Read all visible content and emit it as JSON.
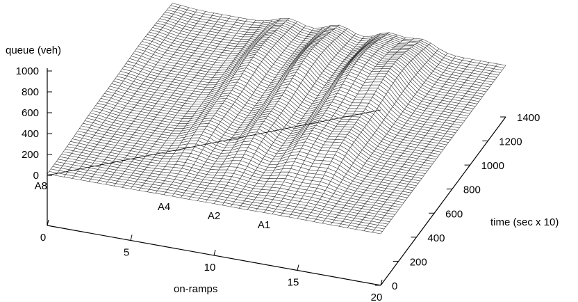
{
  "chart_data": {
    "type": "surface",
    "title": "",
    "xlabel": "on-ramps",
    "ylabel": "time (sec x 10)",
    "zlabel": "queue (veh)",
    "xlim": [
      0,
      20
    ],
    "ylim": [
      0,
      1400
    ],
    "zlim": [
      0,
      1000
    ],
    "x_ticks": [
      "0",
      "5",
      "10",
      "15",
      "20"
    ],
    "y_ticks": [
      "0",
      "200",
      "400",
      "600",
      "800",
      "1000",
      "1200",
      "1400"
    ],
    "z_ticks": [
      "0",
      "200",
      "400",
      "600",
      "800",
      "1000"
    ],
    "ramp_labels": [
      {
        "label": "A8",
        "x": 0
      },
      {
        "label": "A4",
        "x": 7
      },
      {
        "label": "A2",
        "x": 10
      },
      {
        "label": "A1",
        "x": 13
      }
    ],
    "grid": false,
    "surface_profiles": [
      {
        "x": 0,
        "peak_queue": 200
      },
      {
        "x": 7,
        "peak_queue": 700
      },
      {
        "x": 10,
        "peak_queue": 900
      },
      {
        "x": 13,
        "peak_queue": 1000
      },
      {
        "x": 15,
        "peak_queue": 950
      }
    ]
  }
}
